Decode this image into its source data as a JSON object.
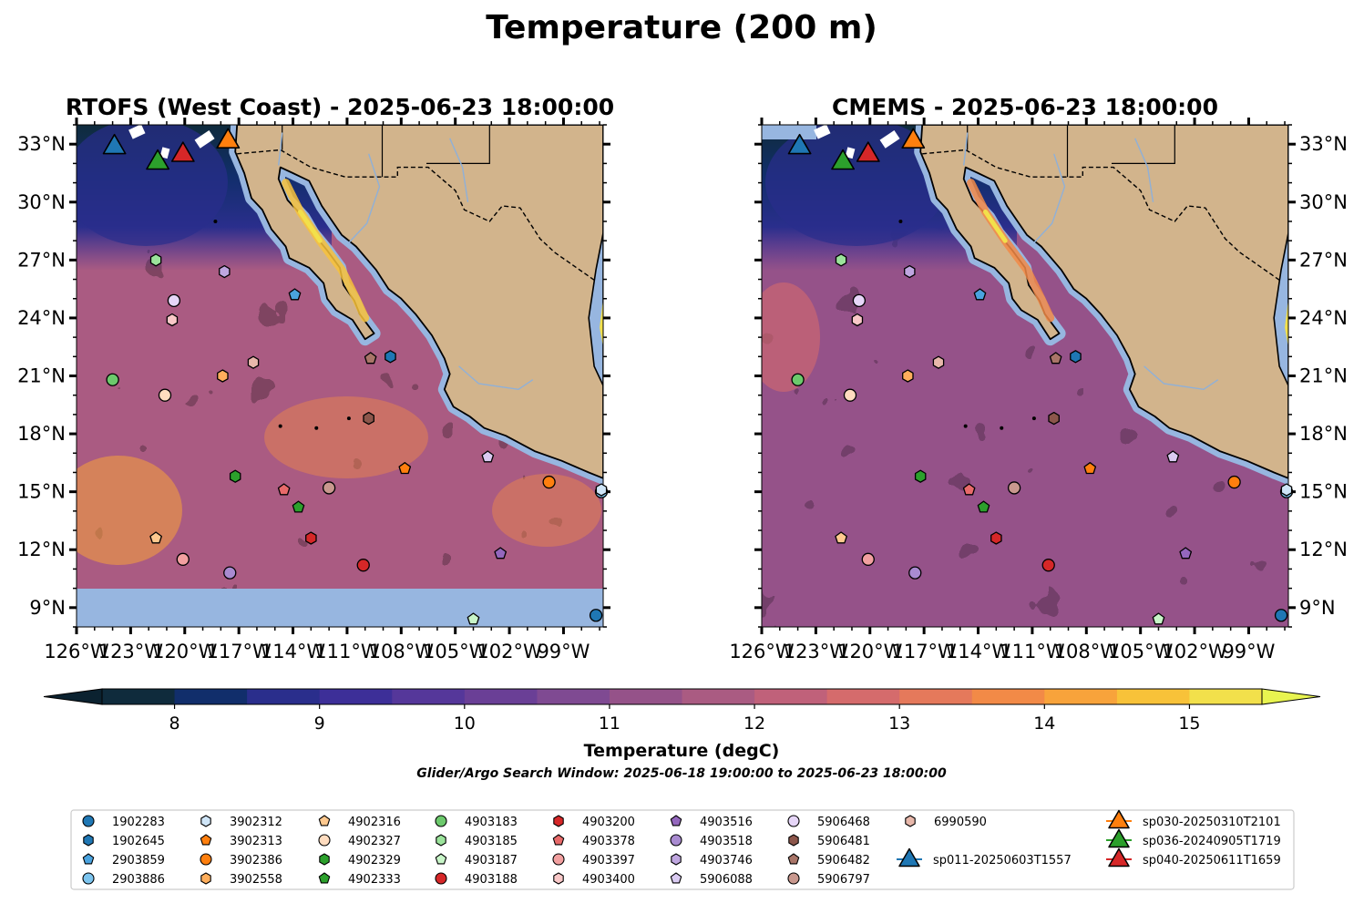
{
  "figure": {
    "suptitle": "Temperature (200 m)",
    "window_text": "Glider/Argo Search Window: 2025-06-18 19:00:00 to 2025-06-23 18:00:00"
  },
  "panels": [
    {
      "title": "RTOFS (West Coast) - 2025-06-23 18:00:00",
      "model": "RTOFS"
    },
    {
      "title": "CMEMS - 2025-06-23 18:00:00",
      "model": "CMEMS"
    }
  ],
  "colors": {
    "land": "#d2b48c",
    "no_data": "#97b6e0",
    "coast": "#000000",
    "rivers": "#8fb0d8",
    "colormap": [
      "#0f2b3c",
      "#112e6b",
      "#2a2e8c",
      "#3d2f98",
      "#55379a",
      "#6a3f96",
      "#7f4a92",
      "#955289",
      "#aa5b82",
      "#c0617a",
      "#d56b6c",
      "#e5795b",
      "#f28a47",
      "#f8a33b",
      "#f8c239",
      "#f2e04b"
    ]
  },
  "chart_data": [
    {
      "type": "heatmap",
      "title": "RTOFS (West Coast) - 2025-06-23 18:00:00",
      "xlim": [
        -126,
        -96.8
      ],
      "ylim": [
        8,
        34
      ],
      "x_ticks": [
        "126°W",
        "123°W",
        "120°W",
        "117°W",
        "114°W",
        "111°W",
        "108°W",
        "105°W",
        "102°W",
        "99°W"
      ],
      "y_ticks": [
        "9°N",
        "12°N",
        "15°N",
        "18°N",
        "21°N",
        "24°N",
        "27°N",
        "30°N",
        "33°N"
      ],
      "y_tick_side": "left",
      "field_note": "mostly 11-13.5 degC, warm patches to 14-15 degC, cold below 9.5 degC north of 29°N, no data south of 10°N"
    },
    {
      "type": "heatmap",
      "title": "CMEMS - 2025-06-23 18:00:00",
      "xlim": [
        -126,
        -96.8
      ],
      "ylim": [
        8,
        34
      ],
      "x_ticks": [
        "126°W",
        "123°W",
        "120°W",
        "117°W",
        "114°W",
        "111°W",
        "108°W",
        "105°W",
        "102°W",
        "99°W"
      ],
      "y_ticks": [
        "9°N",
        "12°N",
        "15°N",
        "18°N",
        "21°N",
        "24°N",
        "27°N",
        "30°N",
        "33°N"
      ],
      "y_tick_side": "right",
      "field_note": "mostly 10.5-12.5 degC, cold below 9.5 degC north of 29°N"
    }
  ],
  "colorbar": {
    "label": "Temperature (degC)",
    "min": 7.5,
    "max": 15.5,
    "step": 0.5,
    "extend": "both",
    "ticks": [
      "8",
      "9",
      "10",
      "11",
      "12",
      "13",
      "14",
      "15"
    ]
  },
  "floats": [
    {
      "id": "1902283",
      "marker": "o",
      "color": "#1f77b4",
      "lon": -97.2,
      "lat": 8.6
    },
    {
      "id": "1902645",
      "marker": "h",
      "color": "#1f77b4",
      "lon": -108.6,
      "lat": 22.0
    },
    {
      "id": "2903859",
      "marker": "p",
      "color": "#4aa3df",
      "lon": -113.9,
      "lat": 25.2
    },
    {
      "id": "2903886",
      "marker": "o",
      "color": "#7cc4ee",
      "lon": -96.9,
      "lat": 15.0
    },
    {
      "id": "3902312",
      "marker": "h",
      "color": "#cfe5f7",
      "lon": -96.9,
      "lat": 15.1
    },
    {
      "id": "3902313",
      "marker": "p",
      "color": "#ff7f0e",
      "lon": -107.8,
      "lat": 16.2
    },
    {
      "id": "3902386",
      "marker": "o",
      "color": "#ff7f0e",
      "lon": -99.8,
      "lat": 15.5
    },
    {
      "id": "3902558",
      "marker": "h",
      "color": "#ffae5c",
      "lon": -117.9,
      "lat": 21.0
    },
    {
      "id": "4902316",
      "marker": "p",
      "color": "#ffc98f",
      "lon": -121.6,
      "lat": 12.6
    },
    {
      "id": "4902327",
      "marker": "o",
      "color": "#ffdcbf",
      "lon": -121.1,
      "lat": 20.0
    },
    {
      "id": "4902329",
      "marker": "h",
      "color": "#2ca02c",
      "lon": -117.2,
      "lat": 15.8
    },
    {
      "id": "4902333",
      "marker": "p",
      "color": "#2ca02c",
      "lon": -113.7,
      "lat": 14.2
    },
    {
      "id": "4903183",
      "marker": "o",
      "color": "#6cc96c",
      "lon": -124.0,
      "lat": 20.8
    },
    {
      "id": "4903185",
      "marker": "h",
      "color": "#9be39b",
      "lon": -121.6,
      "lat": 27.0
    },
    {
      "id": "4903187",
      "marker": "p",
      "color": "#c8f5c8",
      "lon": -104.0,
      "lat": 8.4
    },
    {
      "id": "4903188",
      "marker": "o",
      "color": "#d62728",
      "lon": -110.1,
      "lat": 11.2
    },
    {
      "id": "4903200",
      "marker": "h",
      "color": "#d62728",
      "lon": -113.0,
      "lat": 12.6
    },
    {
      "id": "4903378",
      "marker": "p",
      "color": "#e86a6a",
      "lon": -114.5,
      "lat": 15.1
    },
    {
      "id": "4903397",
      "marker": "o",
      "color": "#f2a0a0",
      "lon": -120.1,
      "lat": 11.5
    },
    {
      "id": "4903400",
      "marker": "h",
      "color": "#f9c8c8",
      "lon": -120.7,
      "lat": 23.9
    },
    {
      "id": "4903516",
      "marker": "p",
      "color": "#9467bd",
      "lon": -102.5,
      "lat": 11.8
    },
    {
      "id": "4903518",
      "marker": "o",
      "color": "#a98bd1",
      "lon": -117.5,
      "lat": 10.8
    },
    {
      "id": "4903746",
      "marker": "h",
      "color": "#bfa6e0",
      "lon": -117.8,
      "lat": 26.4
    },
    {
      "id": "5906088",
      "marker": "p",
      "color": "#dacbf2",
      "lon": -103.2,
      "lat": 16.8
    },
    {
      "id": "5906468",
      "marker": "o",
      "color": "#e6d6f8",
      "lon": -120.6,
      "lat": 24.9
    },
    {
      "id": "5906481",
      "marker": "h",
      "color": "#8c564b",
      "lon": -109.8,
      "lat": 18.8
    },
    {
      "id": "5906482",
      "marker": "p",
      "color": "#a97568",
      "lon": -109.7,
      "lat": 21.9
    },
    {
      "id": "5906797",
      "marker": "o",
      "color": "#c9988e",
      "lon": -112.0,
      "lat": 15.2
    },
    {
      "id": "6990590",
      "marker": "h",
      "color": "#e8b8ab",
      "lon": -116.2,
      "lat": 21.7
    }
  ],
  "gliders": [
    {
      "id": "sp011-20250603T1557",
      "color": "#1f77b4",
      "lon": -123.9,
      "lat": 32.9
    },
    {
      "id": "sp030-20250310T2101",
      "color": "#ff7f0e",
      "lon": -117.6,
      "lat": 33.2
    },
    {
      "id": "sp036-20240905T1719",
      "color": "#2ca02c",
      "lon": -121.5,
      "lat": 32.1
    },
    {
      "id": "sp040-20250611T1659",
      "color": "#d62728",
      "lon": -120.1,
      "lat": 32.5
    }
  ]
}
